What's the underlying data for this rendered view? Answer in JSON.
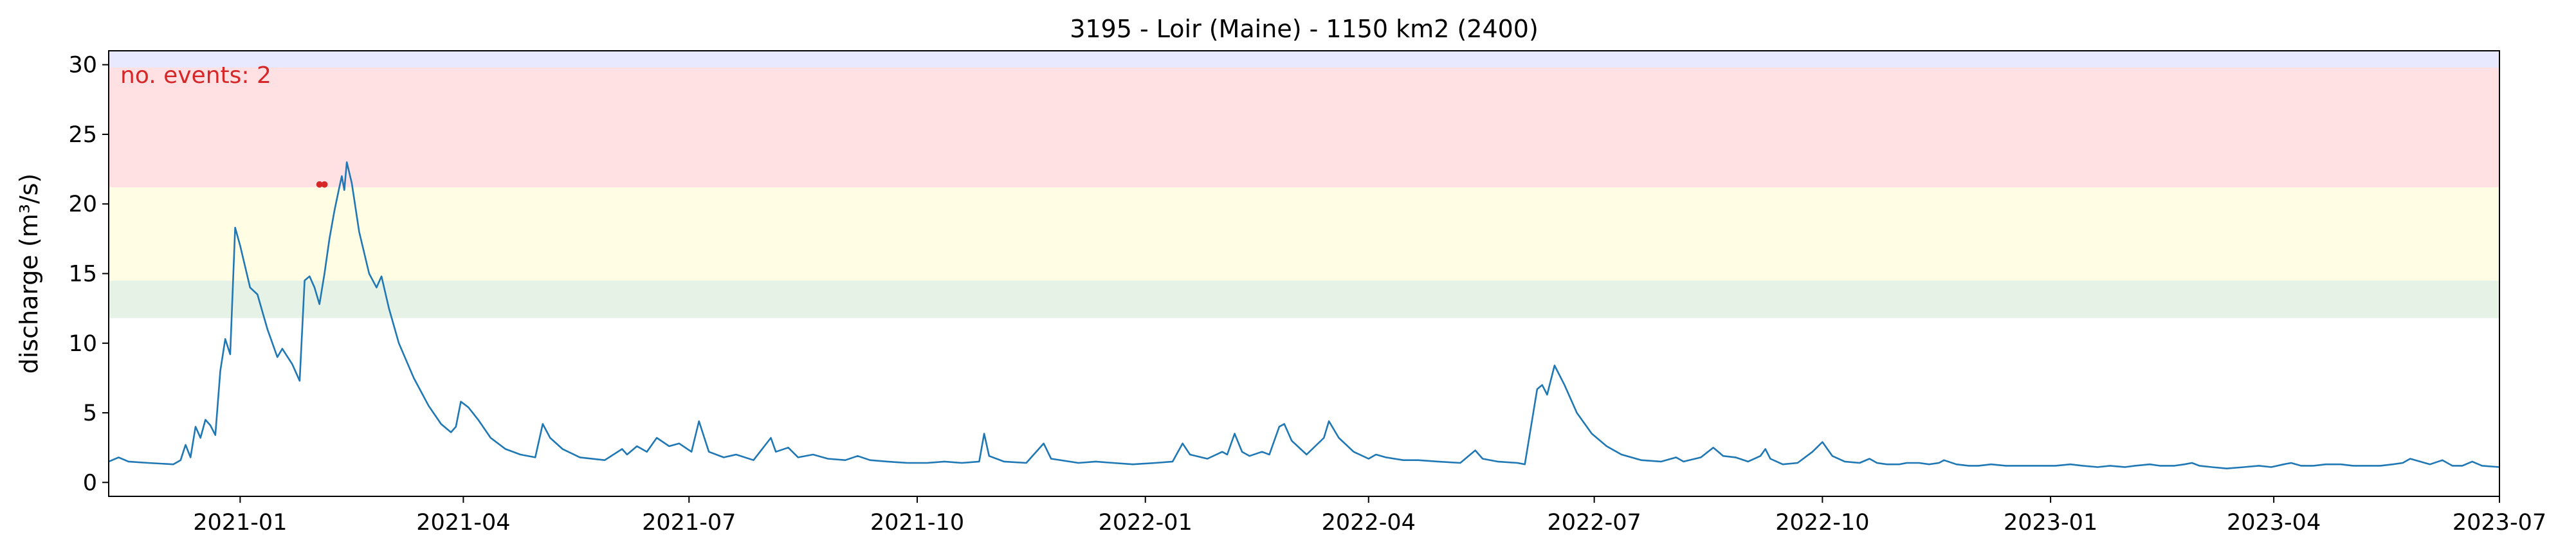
{
  "chart_data": {
    "type": "line",
    "title": "3195 - Loir (Maine) - 1150 km2 (2400)",
    "xlabel": "",
    "ylabel": "discharge (m³/s)",
    "x_range": [
      "2020-11-09",
      "2023-07-01"
    ],
    "ylim": [
      -1,
      31
    ],
    "yticks": [
      0,
      5,
      10,
      15,
      20,
      25,
      30
    ],
    "xticks": [
      "2021-01",
      "2021-04",
      "2021-07",
      "2021-10",
      "2022-01",
      "2022-04",
      "2022-07",
      "2022-10",
      "2023-01",
      "2023-04",
      "2023-07"
    ],
    "grid": false,
    "line_color": "#1f77b4",
    "bands": [
      {
        "from": 11.8,
        "to": 14.5,
        "color": "#e6f2e6"
      },
      {
        "from": 14.5,
        "to": 21.2,
        "color": "#fffde4"
      },
      {
        "from": 21.2,
        "to": 29.8,
        "color": "#ffe1e4"
      },
      {
        "from": 29.8,
        "to": 31,
        "color": "#e8e8ff"
      }
    ],
    "annotation": {
      "text": "no. events: 2",
      "color": "#d62728",
      "position": "top-left"
    },
    "events": {
      "color": "#d62728",
      "points": [
        {
          "x": "2021-02-02",
          "y": 21.4
        },
        {
          "x": "2021-02-04",
          "y": 21.4
        }
      ]
    },
    "series": [
      {
        "points": [
          [
            "2020-11-09",
            1.5
          ],
          [
            "2020-11-13",
            1.8
          ],
          [
            "2020-11-17",
            1.5
          ],
          [
            "2020-11-25",
            1.4
          ],
          [
            "2020-12-05",
            1.3
          ],
          [
            "2020-12-08",
            1.6
          ],
          [
            "2020-12-10",
            2.7
          ],
          [
            "2020-12-12",
            1.8
          ],
          [
            "2020-12-14",
            4.0
          ],
          [
            "2020-12-16",
            3.2
          ],
          [
            "2020-12-18",
            4.5
          ],
          [
            "2020-12-20",
            4.1
          ],
          [
            "2020-12-22",
            3.4
          ],
          [
            "2020-12-24",
            8.0
          ],
          [
            "2020-12-26",
            10.3
          ],
          [
            "2020-12-28",
            9.2
          ],
          [
            "2020-12-30",
            18.3
          ],
          [
            "2021-01-01",
            17.0
          ],
          [
            "2021-01-05",
            14.0
          ],
          [
            "2021-01-08",
            13.5
          ],
          [
            "2021-01-12",
            11.0
          ],
          [
            "2021-01-16",
            9.0
          ],
          [
            "2021-01-18",
            9.6
          ],
          [
            "2021-01-22",
            8.5
          ],
          [
            "2021-01-25",
            7.3
          ],
          [
            "2021-01-27",
            14.5
          ],
          [
            "2021-01-29",
            14.8
          ],
          [
            "2021-01-31",
            14.0
          ],
          [
            "2021-02-02",
            12.8
          ],
          [
            "2021-02-04",
            15.0
          ],
          [
            "2021-02-06",
            17.5
          ],
          [
            "2021-02-08",
            19.5
          ],
          [
            "2021-02-10",
            21.2
          ],
          [
            "2021-02-11",
            22.0
          ],
          [
            "2021-02-12",
            21.0
          ],
          [
            "2021-02-13",
            23.0
          ],
          [
            "2021-02-15",
            21.5
          ],
          [
            "2021-02-18",
            18.0
          ],
          [
            "2021-02-22",
            15.0
          ],
          [
            "2021-02-25",
            14.0
          ],
          [
            "2021-02-27",
            14.8
          ],
          [
            "2021-03-02",
            12.5
          ],
          [
            "2021-03-06",
            10.0
          ],
          [
            "2021-03-12",
            7.5
          ],
          [
            "2021-03-18",
            5.5
          ],
          [
            "2021-03-23",
            4.2
          ],
          [
            "2021-03-27",
            3.6
          ],
          [
            "2021-03-29",
            4.0
          ],
          [
            "2021-03-31",
            5.8
          ],
          [
            "2021-04-03",
            5.4
          ],
          [
            "2021-04-07",
            4.5
          ],
          [
            "2021-04-12",
            3.2
          ],
          [
            "2021-04-18",
            2.4
          ],
          [
            "2021-04-24",
            2.0
          ],
          [
            "2021-04-30",
            1.8
          ],
          [
            "2021-05-03",
            4.2
          ],
          [
            "2021-05-06",
            3.2
          ],
          [
            "2021-05-11",
            2.4
          ],
          [
            "2021-05-18",
            1.8
          ],
          [
            "2021-05-28",
            1.6
          ],
          [
            "2021-06-04",
            2.4
          ],
          [
            "2021-06-06",
            2.0
          ],
          [
            "2021-06-10",
            2.6
          ],
          [
            "2021-06-14",
            2.2
          ],
          [
            "2021-06-18",
            3.2
          ],
          [
            "2021-06-23",
            2.6
          ],
          [
            "2021-06-27",
            2.8
          ],
          [
            "2021-07-02",
            2.2
          ],
          [
            "2021-07-05",
            4.4
          ],
          [
            "2021-07-09",
            2.2
          ],
          [
            "2021-07-15",
            1.8
          ],
          [
            "2021-07-20",
            2.0
          ],
          [
            "2021-07-27",
            1.6
          ],
          [
            "2021-08-03",
            3.2
          ],
          [
            "2021-08-05",
            2.2
          ],
          [
            "2021-08-10",
            2.5
          ],
          [
            "2021-08-14",
            1.8
          ],
          [
            "2021-08-20",
            2.0
          ],
          [
            "2021-08-26",
            1.7
          ],
          [
            "2021-09-02",
            1.6
          ],
          [
            "2021-09-07",
            1.9
          ],
          [
            "2021-09-12",
            1.6
          ],
          [
            "2021-09-19",
            1.5
          ],
          [
            "2021-09-27",
            1.4
          ],
          [
            "2021-10-05",
            1.4
          ],
          [
            "2021-10-12",
            1.5
          ],
          [
            "2021-10-19",
            1.4
          ],
          [
            "2021-10-26",
            1.5
          ],
          [
            "2021-10-28",
            3.5
          ],
          [
            "2021-10-30",
            1.9
          ],
          [
            "2021-11-05",
            1.5
          ],
          [
            "2021-11-14",
            1.4
          ],
          [
            "2021-11-21",
            2.8
          ],
          [
            "2021-11-24",
            1.7
          ],
          [
            "2021-12-05",
            1.4
          ],
          [
            "2021-12-12",
            1.5
          ],
          [
            "2021-12-19",
            1.4
          ],
          [
            "2021-12-27",
            1.3
          ],
          [
            "2022-01-05",
            1.4
          ],
          [
            "2022-01-12",
            1.5
          ],
          [
            "2022-01-16",
            2.8
          ],
          [
            "2022-01-19",
            2.0
          ],
          [
            "2022-01-26",
            1.7
          ],
          [
            "2022-02-01",
            2.2
          ],
          [
            "2022-02-03",
            2.0
          ],
          [
            "2022-02-06",
            3.5
          ],
          [
            "2022-02-09",
            2.2
          ],
          [
            "2022-02-12",
            1.9
          ],
          [
            "2022-02-17",
            2.2
          ],
          [
            "2022-02-20",
            2.0
          ],
          [
            "2022-02-24",
            4.0
          ],
          [
            "2022-02-26",
            4.2
          ],
          [
            "2022-03-01",
            3.0
          ],
          [
            "2022-03-07",
            2.0
          ],
          [
            "2022-03-14",
            3.2
          ],
          [
            "2022-03-16",
            4.4
          ],
          [
            "2022-03-20",
            3.2
          ],
          [
            "2022-03-26",
            2.2
          ],
          [
            "2022-04-01",
            1.7
          ],
          [
            "2022-04-04",
            2.0
          ],
          [
            "2022-04-08",
            1.8
          ],
          [
            "2022-04-15",
            1.6
          ],
          [
            "2022-04-21",
            1.6
          ],
          [
            "2022-04-29",
            1.5
          ],
          [
            "2022-05-08",
            1.4
          ],
          [
            "2022-05-14",
            2.3
          ],
          [
            "2022-05-17",
            1.7
          ],
          [
            "2022-05-23",
            1.5
          ],
          [
            "2022-05-31",
            1.4
          ],
          [
            "2022-06-03",
            1.3
          ],
          [
            "2022-06-08",
            6.7
          ],
          [
            "2022-06-10",
            7.0
          ],
          [
            "2022-06-12",
            6.3
          ],
          [
            "2022-06-15",
            8.4
          ],
          [
            "2022-06-19",
            7.0
          ],
          [
            "2022-06-24",
            5.0
          ],
          [
            "2022-06-30",
            3.5
          ],
          [
            "2022-07-06",
            2.6
          ],
          [
            "2022-07-12",
            2.0
          ],
          [
            "2022-07-20",
            1.6
          ],
          [
            "2022-07-28",
            1.5
          ],
          [
            "2022-08-03",
            1.8
          ],
          [
            "2022-08-06",
            1.5
          ],
          [
            "2022-08-13",
            1.8
          ],
          [
            "2022-08-18",
            2.5
          ],
          [
            "2022-08-22",
            1.9
          ],
          [
            "2022-08-27",
            1.8
          ],
          [
            "2022-09-01",
            1.5
          ],
          [
            "2022-09-06",
            1.9
          ],
          [
            "2022-09-08",
            2.4
          ],
          [
            "2022-09-10",
            1.7
          ],
          [
            "2022-09-15",
            1.3
          ],
          [
            "2022-09-21",
            1.4
          ],
          [
            "2022-09-27",
            2.2
          ],
          [
            "2022-10-01",
            2.9
          ],
          [
            "2022-10-05",
            1.9
          ],
          [
            "2022-10-10",
            1.5
          ],
          [
            "2022-10-16",
            1.4
          ],
          [
            "2022-10-20",
            1.7
          ],
          [
            "2022-10-23",
            1.4
          ],
          [
            "2022-10-27",
            1.3
          ],
          [
            "2022-11-01",
            1.3
          ],
          [
            "2022-11-04",
            1.4
          ],
          [
            "2022-11-09",
            1.4
          ],
          [
            "2022-11-13",
            1.3
          ],
          [
            "2022-11-17",
            1.4
          ],
          [
            "2022-11-19",
            1.6
          ],
          [
            "2022-11-24",
            1.3
          ],
          [
            "2022-11-29",
            1.2
          ],
          [
            "2022-12-03",
            1.2
          ],
          [
            "2022-12-08",
            1.3
          ],
          [
            "2022-12-14",
            1.2
          ],
          [
            "2022-12-21",
            1.2
          ],
          [
            "2022-12-27",
            1.2
          ],
          [
            "2023-01-03",
            1.2
          ],
          [
            "2023-01-09",
            1.3
          ],
          [
            "2023-01-14",
            1.2
          ],
          [
            "2023-01-20",
            1.1
          ],
          [
            "2023-01-25",
            1.2
          ],
          [
            "2023-01-31",
            1.1
          ],
          [
            "2023-02-04",
            1.2
          ],
          [
            "2023-02-10",
            1.3
          ],
          [
            "2023-02-14",
            1.2
          ],
          [
            "2023-02-20",
            1.2
          ],
          [
            "2023-02-24",
            1.3
          ],
          [
            "2023-02-27",
            1.4
          ],
          [
            "2023-03-02",
            1.2
          ],
          [
            "2023-03-07",
            1.1
          ],
          [
            "2023-03-13",
            1.0
          ],
          [
            "2023-03-20",
            1.1
          ],
          [
            "2023-03-26",
            1.2
          ],
          [
            "2023-03-31",
            1.1
          ],
          [
            "2023-04-05",
            1.3
          ],
          [
            "2023-04-08",
            1.4
          ],
          [
            "2023-04-12",
            1.2
          ],
          [
            "2023-04-17",
            1.2
          ],
          [
            "2023-04-22",
            1.3
          ],
          [
            "2023-04-28",
            1.3
          ],
          [
            "2023-05-03",
            1.2
          ],
          [
            "2023-05-08",
            1.2
          ],
          [
            "2023-05-14",
            1.2
          ],
          [
            "2023-05-19",
            1.3
          ],
          [
            "2023-05-23",
            1.4
          ],
          [
            "2023-05-26",
            1.7
          ],
          [
            "2023-05-30",
            1.5
          ],
          [
            "2023-06-03",
            1.3
          ],
          [
            "2023-06-08",
            1.6
          ],
          [
            "2023-06-12",
            1.2
          ],
          [
            "2023-06-16",
            1.2
          ],
          [
            "2023-06-20",
            1.5
          ],
          [
            "2023-06-24",
            1.2
          ],
          [
            "2023-07-01",
            1.1
          ]
        ]
      }
    ]
  }
}
